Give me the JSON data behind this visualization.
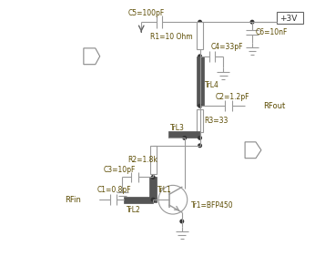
{
  "bg_color": "#ffffff",
  "text_color": "#5a4a00",
  "line_color": "#999999",
  "dark_fill": "#555555",
  "labels": {
    "RFin": "RFin",
    "RFout": "RFout",
    "C1": "C1=0.8pF",
    "C2": "C2=1.2pF",
    "C3": "C3=10pF",
    "C4": "C4=33pF",
    "C5": "C5=100pF",
    "C6": "C6=10nF",
    "R1": "R1=10 Ohm",
    "R2": "R2=1.8k",
    "R3": "R3=33",
    "TrL1": "TrL1",
    "TrL2": "TrL2",
    "TrL3": "TrL3",
    "TrL4": "TrL4",
    "Tr1": "Tr1=BFP450",
    "VCC": "+3V"
  }
}
